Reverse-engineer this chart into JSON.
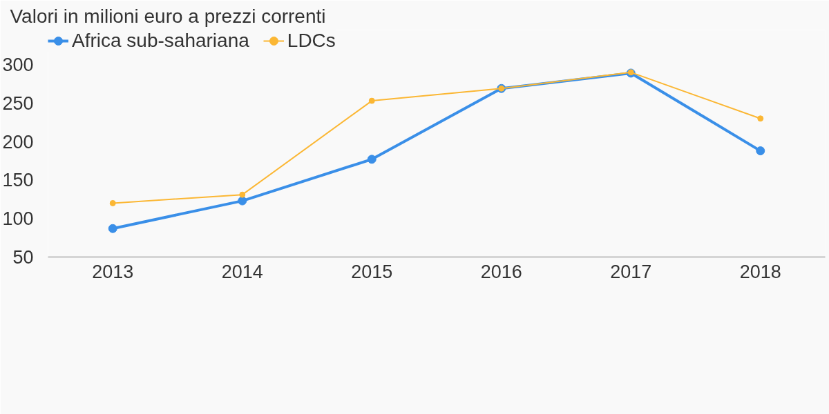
{
  "chart_data": {
    "type": "line",
    "title": "Valori in milioni euro a prezzi correnti",
    "x": [
      2013,
      2014,
      2015,
      2016,
      2017,
      2018
    ],
    "series": [
      {
        "name": "Africa sub-sahariana",
        "color": "#3a8fe8",
        "values": [
          87,
          123,
          177,
          269,
          289,
          188
        ]
      },
      {
        "name": "LDCs",
        "color": "#fbb734",
        "values": [
          120,
          131,
          253,
          269,
          290,
          230
        ]
      }
    ],
    "xlim": [
      2012.5,
      2018.5
    ],
    "xticks": [
      2013,
      2014,
      2015,
      2016,
      2017,
      2018
    ],
    "ylim": [
      50,
      345
    ],
    "yticks": [
      50,
      100,
      150,
      200,
      250,
      300
    ],
    "grid": false,
    "legend": "top left",
    "marker": "circle",
    "line_style": "solid"
  }
}
